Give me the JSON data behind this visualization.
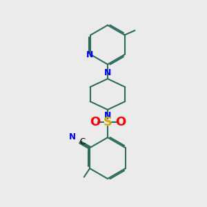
{
  "bg_color": "#ebebeb",
  "bond_color": "#2d6b5e",
  "n_color": "#0000ff",
  "o_color": "#ff0000",
  "s_color": "#ccaa00",
  "c_color": "#000000",
  "line_width": 1.5,
  "figsize": [
    3.0,
    3.0
  ],
  "dpi": 100,
  "xlim": [
    0,
    10
  ],
  "ylim": [
    0,
    10
  ]
}
